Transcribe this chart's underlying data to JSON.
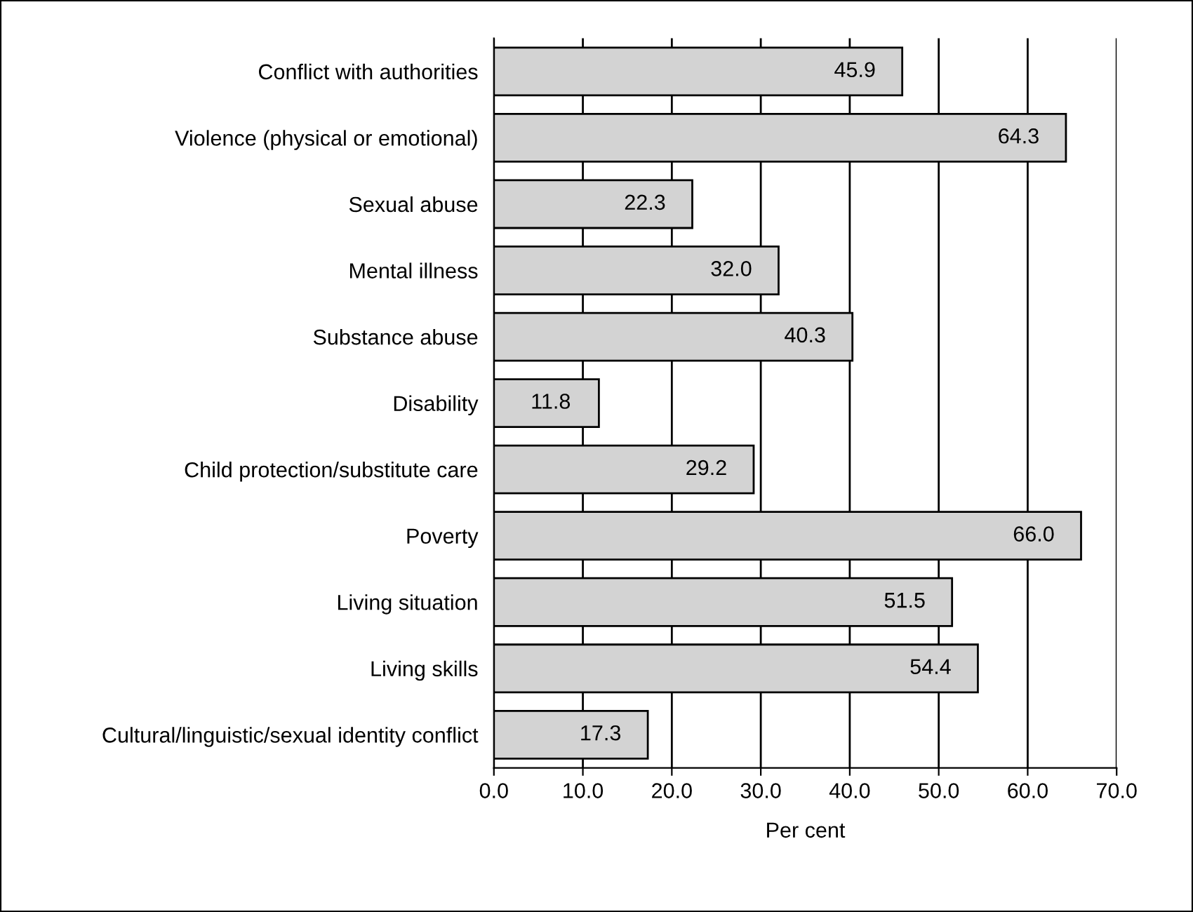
{
  "chart_data": {
    "type": "bar",
    "orientation": "horizontal",
    "xlabel": "Per cent",
    "categories": [
      "Conflict with authorities",
      "Violence (physical or emotional)",
      "Sexual abuse",
      "Mental illness",
      "Substance abuse",
      "Disability",
      "Child protection/substitute care",
      "Poverty",
      "Living situation",
      "Living skills",
      "Cultural/linguistic/sexual identity conflict"
    ],
    "values": [
      45.9,
      64.3,
      22.3,
      32.0,
      40.3,
      11.8,
      29.2,
      66.0,
      51.5,
      54.4,
      17.3
    ],
    "value_labels": [
      "45.9",
      "64.3",
      "22.3",
      "32.0",
      "40.3",
      "11.8",
      "29.2",
      "66.0",
      "51.5",
      "54.4",
      "17.3"
    ],
    "color": "#d3d3d3",
    "xlim": [
      0,
      70
    ],
    "xticks": [
      {
        "value": 0,
        "label": "0.0"
      },
      {
        "value": 10,
        "label": "10.0"
      },
      {
        "value": 20,
        "label": "20.0"
      },
      {
        "value": 30,
        "label": "30.0"
      },
      {
        "value": 40,
        "label": "40.0"
      },
      {
        "value": 50,
        "label": "50.0"
      },
      {
        "value": 60,
        "label": "60.0"
      },
      {
        "value": 70,
        "label": "70.0"
      }
    ],
    "grid": "x",
    "legend": false
  }
}
